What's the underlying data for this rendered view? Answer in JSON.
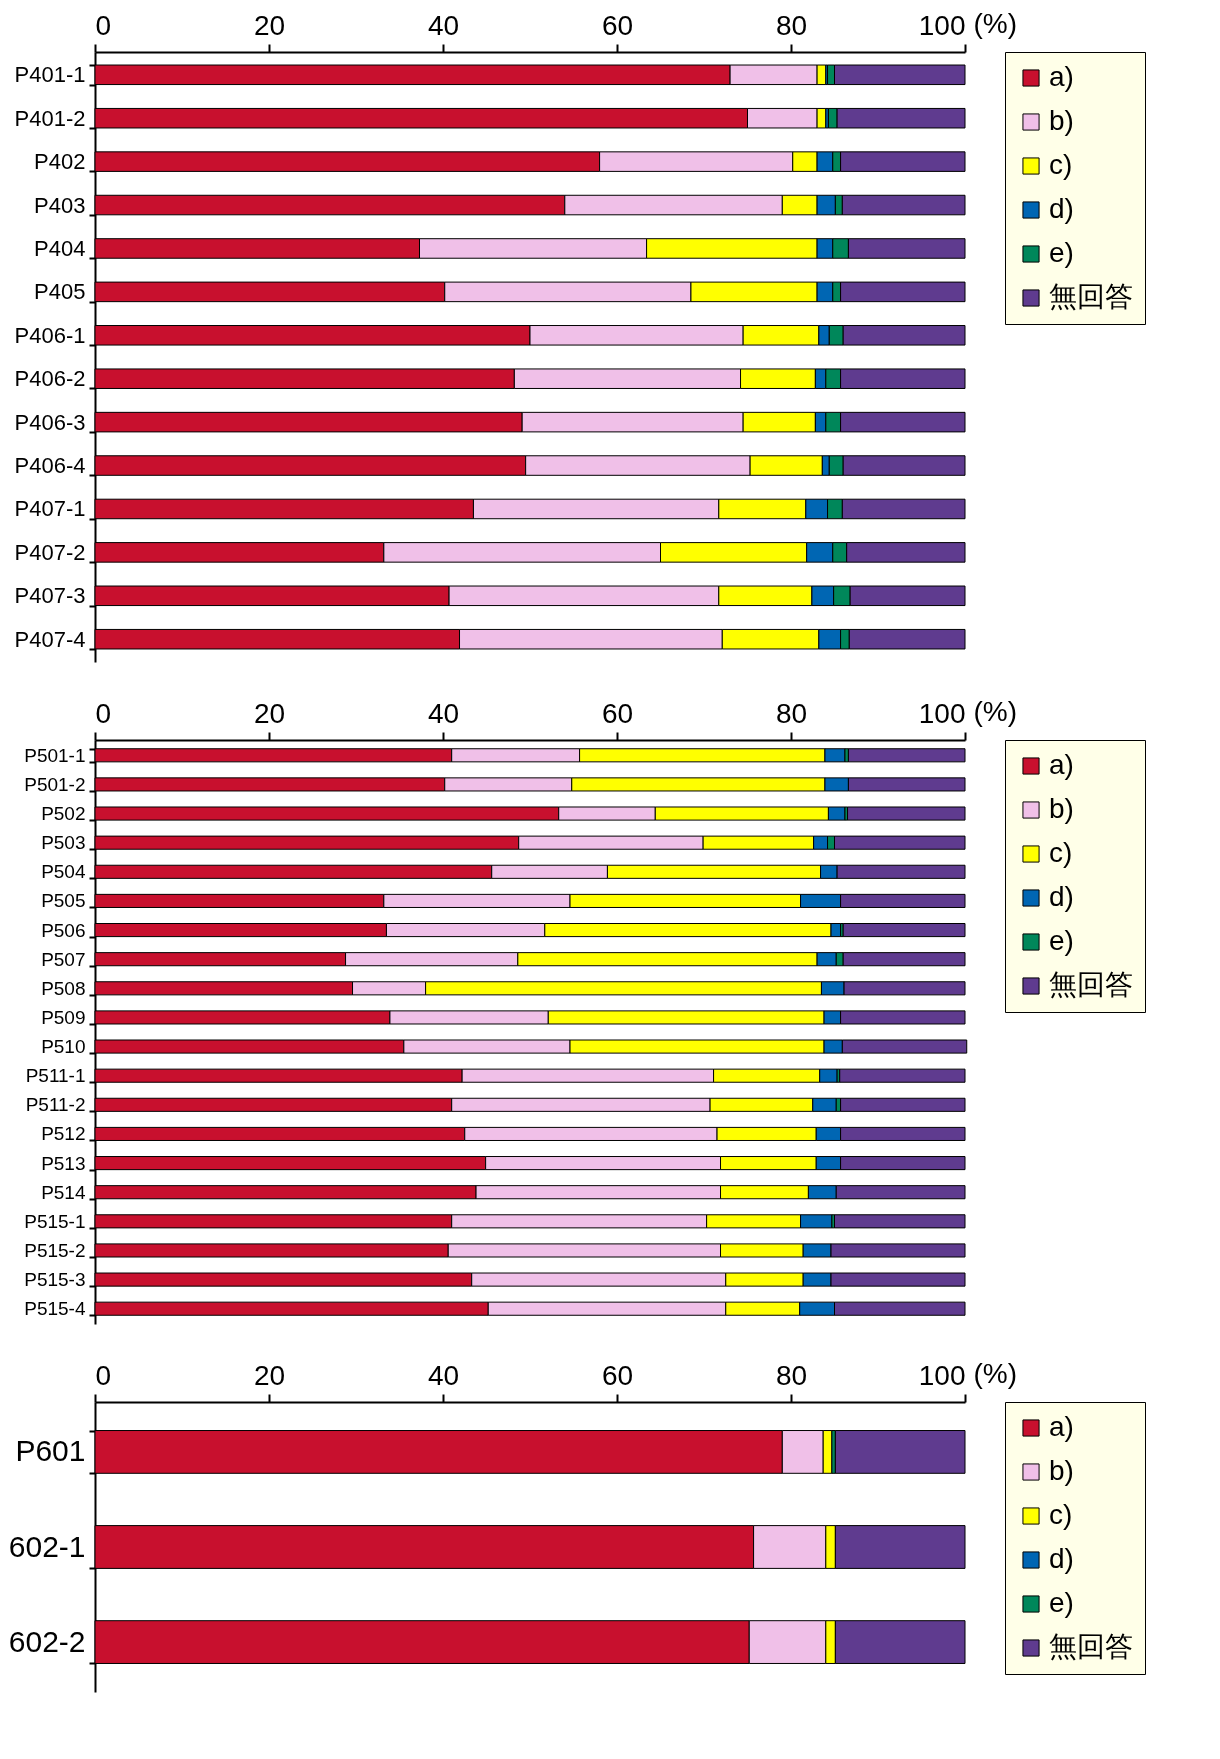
{
  "chart_data": [
    {
      "type": "bar",
      "orientation": "horizontal",
      "stacked": true,
      "xlabel": "(%)",
      "xlim": [
        0,
        100
      ],
      "xticks": [
        0,
        20,
        40,
        60,
        80,
        100
      ],
      "legend": "right",
      "grid": false,
      "categories": [
        "P401-1",
        "P401-2",
        "P402",
        "P403",
        "P404",
        "P405",
        "P406-1",
        "P406-2",
        "P406-3",
        "P406-4",
        "P407-1",
        "P407-2",
        "P407-3",
        "P407-4"
      ],
      "series": [
        {
          "name": "a)",
          "color": "#c8102e",
          "values": [
            73,
            75,
            58,
            54,
            37.3,
            40.2,
            50,
            48.2,
            49.1,
            49.5,
            43.5,
            33.2,
            40.7,
            41.9
          ]
        },
        {
          "name": "b)",
          "color": "#f0c0e8",
          "values": [
            10,
            8,
            22.2,
            25,
            26.1,
            28.3,
            24.5,
            26,
            25.4,
            25.8,
            28.2,
            31.8,
            31,
            30.2
          ]
        },
        {
          "name": "c)",
          "color": "#ffff00",
          "values": [
            1,
            1,
            2.8,
            4,
            19.6,
            14.5,
            8.7,
            8.6,
            8.3,
            8.3,
            10,
            16.8,
            10.7,
            11.1
          ]
        },
        {
          "name": "d)",
          "color": "#0066b3",
          "values": [
            0.2,
            0.3,
            1.8,
            2.1,
            1.8,
            1.8,
            1.2,
            1.2,
            1.2,
            0.8,
            2.5,
            3,
            2.5,
            2.5
          ]
        },
        {
          "name": "e)",
          "color": "#00875a",
          "values": [
            0.8,
            1,
            0.9,
            0.8,
            1.8,
            0.9,
            1.6,
            1.7,
            1.7,
            1.6,
            1.7,
            1.6,
            1.9,
            1
          ]
        },
        {
          "name": "無回答",
          "color": "#5f3b8f",
          "values": [
            15,
            14.7,
            14.3,
            14.1,
            13.4,
            14.3,
            14,
            14.3,
            14.3,
            14,
            14.1,
            13.6,
            13.2,
            13.3
          ]
        }
      ]
    },
    {
      "type": "bar",
      "orientation": "horizontal",
      "stacked": true,
      "xlabel": "(%)",
      "xlim": [
        0,
        100
      ],
      "xticks": [
        0,
        20,
        40,
        60,
        80,
        100
      ],
      "legend": "right",
      "grid": false,
      "categories": [
        "P501-1",
        "P501-2",
        "P502",
        "P503",
        "P504",
        "P505",
        "P506",
        "P507",
        "P508",
        "P509",
        "P510",
        "P511-1",
        "P511-2",
        "P512",
        "P513",
        "P514",
        "P515-1",
        "P515-2",
        "P515-3",
        "P515-4"
      ],
      "series": [
        {
          "name": "a)",
          "color": "#c8102e",
          "values": [
            41,
            40.2,
            53.3,
            48.7,
            45.6,
            33.2,
            33.5,
            28.8,
            29.6,
            33.9,
            35.5,
            42.2,
            41,
            42.5,
            44.9,
            43.8,
            41,
            40.6,
            43.3,
            45.2
          ]
        },
        {
          "name": "b)",
          "color": "#f0c0e8",
          "values": [
            14.7,
            14.6,
            11.1,
            21.2,
            13.3,
            21.4,
            18.2,
            19.8,
            8.4,
            18.2,
            19.1,
            28.9,
            29.7,
            29,
            27,
            28.1,
            29.3,
            31.3,
            29.2,
            27.3
          ]
        },
        {
          "name": "c)",
          "color": "#ffff00",
          "values": [
            28.2,
            29.1,
            19.9,
            12.7,
            24.5,
            26.5,
            32.9,
            34.4,
            45.5,
            31.7,
            29.2,
            12.2,
            11.8,
            11.4,
            11,
            10.1,
            10.8,
            9.5,
            8.9,
            8.5
          ]
        },
        {
          "name": "d)",
          "color": "#0066b3",
          "values": [
            2.3,
            2.7,
            1.9,
            1.6,
            1.9,
            4.6,
            1.1,
            2.2,
            2.6,
            1.9,
            2.1,
            2,
            2.7,
            2.8,
            2.8,
            3.2,
            3.6,
            3.2,
            3.2,
            4
          ]
        },
        {
          "name": "e)",
          "color": "#00875a",
          "values": [
            0.4,
            null,
            0.3,
            0.8,
            null,
            null,
            0.3,
            0.8,
            null,
            null,
            null,
            0.3,
            0.5,
            null,
            null,
            null,
            0.3,
            null,
            null,
            null
          ]
        },
        {
          "name": "無回答",
          "color": "#5f3b8f",
          "values": [
            13.4,
            13.4,
            13.5,
            15,
            14.7,
            14.3,
            14,
            14,
            13.9,
            14.3,
            14.3,
            14.4,
            14.3,
            14.3,
            14.3,
            14.8,
            15,
            15.4,
            15.4,
            15
          ]
        }
      ]
    },
    {
      "type": "bar",
      "orientation": "horizontal",
      "stacked": true,
      "xlabel": "(%)",
      "xlim": [
        0,
        100
      ],
      "xticks": [
        0,
        20,
        40,
        60,
        80,
        100
      ],
      "legend": "right",
      "grid": false,
      "categories": [
        "P601",
        "602-1",
        "602-2"
      ],
      "series": [
        {
          "name": "a)",
          "color": "#c8102e",
          "values": [
            79,
            75.7,
            75.2
          ]
        },
        {
          "name": "b)",
          "color": "#f0c0e8",
          "values": [
            4.7,
            8.3,
            8.8
          ]
        },
        {
          "name": "c)",
          "color": "#ffff00",
          "values": [
            1,
            1.1,
            1.1
          ]
        },
        {
          "name": "d)",
          "color": "#0066b3",
          "values": [
            null,
            null,
            null
          ]
        },
        {
          "name": "e)",
          "color": "#00875a",
          "values": [
            0.4,
            null,
            null
          ]
        },
        {
          "name": "無回答",
          "color": "#5f3b8f",
          "values": [
            14.9,
            14.9,
            14.9
          ]
        }
      ]
    }
  ]
}
